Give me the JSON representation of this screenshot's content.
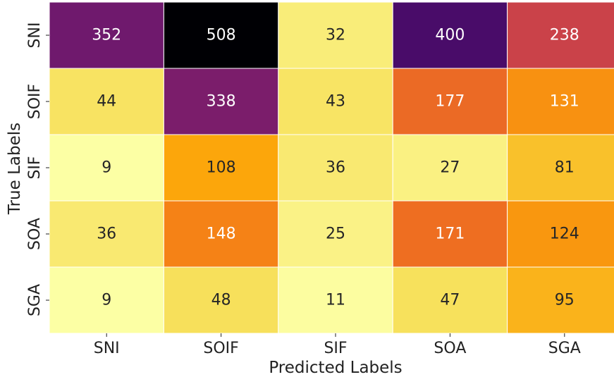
{
  "chart_data": {
    "type": "heatmap",
    "title": "",
    "xlabel": "Predicted Labels",
    "ylabel": "True Labels",
    "x_categories": [
      "SNI",
      "SOIF",
      "SIF",
      "SOA",
      "SGA"
    ],
    "y_categories": [
      "SNI",
      "SOIF",
      "SIF",
      "SOA",
      "SGA"
    ],
    "values": [
      [
        352,
        508,
        32,
        400,
        238
      ],
      [
        44,
        338,
        43,
        177,
        131
      ],
      [
        9,
        108,
        36,
        27,
        81
      ],
      [
        36,
        148,
        25,
        171,
        124
      ],
      [
        9,
        48,
        11,
        47,
        95
      ]
    ],
    "colormap": "inferno_r",
    "value_range": [
      9,
      508
    ],
    "colorbar": false,
    "grid_lines": "white"
  }
}
